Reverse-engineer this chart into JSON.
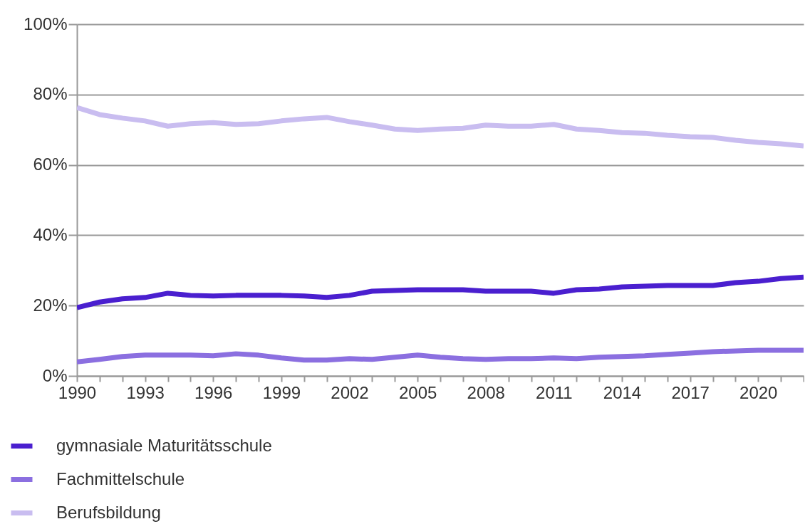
{
  "chart_data": {
    "type": "line",
    "x": [
      1990,
      1991,
      1992,
      1993,
      1994,
      1995,
      1996,
      1997,
      1998,
      1999,
      2000,
      2001,
      2002,
      2003,
      2004,
      2005,
      2006,
      2007,
      2008,
      2009,
      2010,
      2011,
      2012,
      2013,
      2014,
      2015,
      2016,
      2017,
      2018,
      2019,
      2020,
      2021,
      2022
    ],
    "series": [
      {
        "name": "gymnasiale Maturitätsschule",
        "color": "#4a1fcf",
        "values": [
          19.4,
          21,
          21.9,
          22.3,
          23.5,
          22.9,
          22.7,
          22.9,
          22.9,
          22.9,
          22.7,
          22.3,
          22.9,
          24.1,
          24.3,
          24.5,
          24.5,
          24.5,
          24.1,
          24.1,
          24.1,
          23.5,
          24.5,
          24.7,
          25.3,
          25.5,
          25.7,
          25.7,
          25.7,
          26.5,
          26.9,
          27.7,
          28.1
        ]
      },
      {
        "name": "Fachmittelschule",
        "color": "#8b6fe0",
        "values": [
          4,
          4.7,
          5.5,
          5.9,
          5.9,
          5.9,
          5.7,
          6.3,
          5.9,
          5.1,
          4.5,
          4.5,
          4.9,
          4.7,
          5.3,
          5.9,
          5.3,
          4.9,
          4.7,
          4.9,
          4.9,
          5.1,
          4.9,
          5.3,
          5.5,
          5.7,
          6.1,
          6.5,
          6.9,
          7.1,
          7.3,
          7.3,
          7.3
        ]
      },
      {
        "name": "Berufsbildung",
        "color": "#c9bdf0",
        "values": [
          76.3,
          74.3,
          73.3,
          72.5,
          71,
          71.7,
          72,
          71.5,
          71.7,
          72.5,
          73.1,
          73.5,
          72.3,
          71.3,
          70.2,
          69.8,
          70.2,
          70.4,
          71.3,
          71,
          71,
          71.5,
          70.2,
          69.8,
          69.2,
          69,
          68.4,
          68,
          67.8,
          67,
          66.4,
          66,
          65.4
        ]
      }
    ],
    "xlim": [
      1990,
      2022
    ],
    "xticks": [
      1990,
      {
        "value": 1991,
        "label": null
      },
      {
        "value": 1992,
        "label": null
      },
      1993,
      {
        "value": 1994,
        "label": null
      },
      {
        "value": 1995,
        "label": null
      },
      1996,
      {
        "value": 1997,
        "label": null
      },
      {
        "value": 1998,
        "label": null
      },
      1999,
      {
        "value": 2000,
        "label": null
      },
      {
        "value": 2001,
        "label": null
      },
      2002,
      {
        "value": 2003,
        "label": null
      },
      {
        "value": 2004,
        "label": null
      },
      2005,
      {
        "value": 2006,
        "label": null
      },
      {
        "value": 2007,
        "label": null
      },
      2008,
      {
        "value": 2009,
        "label": null
      },
      {
        "value": 2010,
        "label": null
      },
      2011,
      {
        "value": 2012,
        "label": null
      },
      {
        "value": 2013,
        "label": null
      },
      2014,
      {
        "value": 2015,
        "label": null
      },
      {
        "value": 2016,
        "label": null
      },
      2017,
      {
        "value": 2018,
        "label": null
      },
      {
        "value": 2019,
        "label": null
      },
      2020,
      {
        "value": 2021,
        "label": null
      },
      {
        "value": 2022,
        "label": null
      }
    ],
    "ylim": [
      0,
      100
    ],
    "yticks": [
      {
        "value": 0,
        "label": "0%"
      },
      {
        "value": 20,
        "label": "20%"
      },
      {
        "value": 40,
        "label": "40%"
      },
      {
        "value": 60,
        "label": "60%"
      },
      {
        "value": 80,
        "label": "80%"
      },
      {
        "value": 100,
        "label": "100%"
      }
    ],
    "grid": "y",
    "legend": "bottom left"
  }
}
